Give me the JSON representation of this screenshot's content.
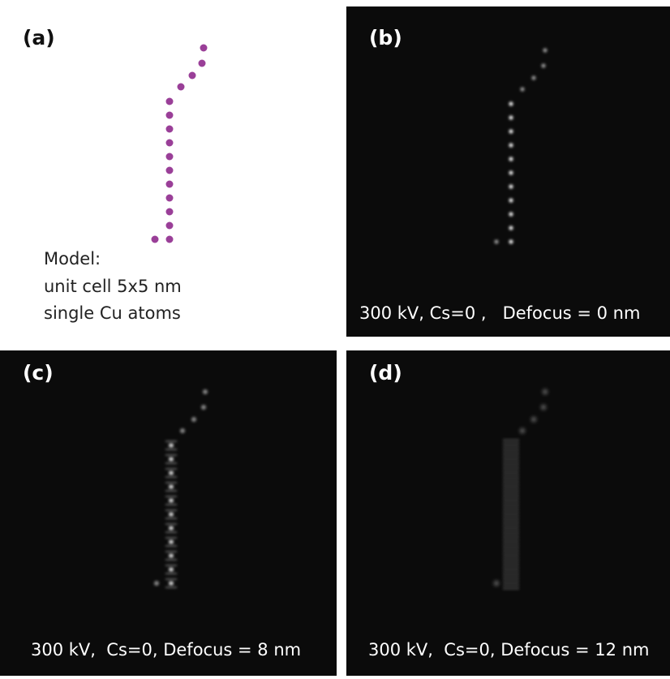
{
  "panels": [
    {
      "label": "(a)",
      "caption": [
        "Model:",
        "unit cell 5x5 nm",
        "single Cu atoms"
      ]
    },
    {
      "label": "(b)",
      "caption": "300 kV, Cs=0 ,   Defocus = 0 nm"
    },
    {
      "label": "(c)",
      "caption": "300 kV,  Cs=0, Defocus = 8 nm"
    },
    {
      "label": "(d)",
      "caption": "300 kV,  Cs=0, Defocus = 12 nm"
    }
  ]
}
